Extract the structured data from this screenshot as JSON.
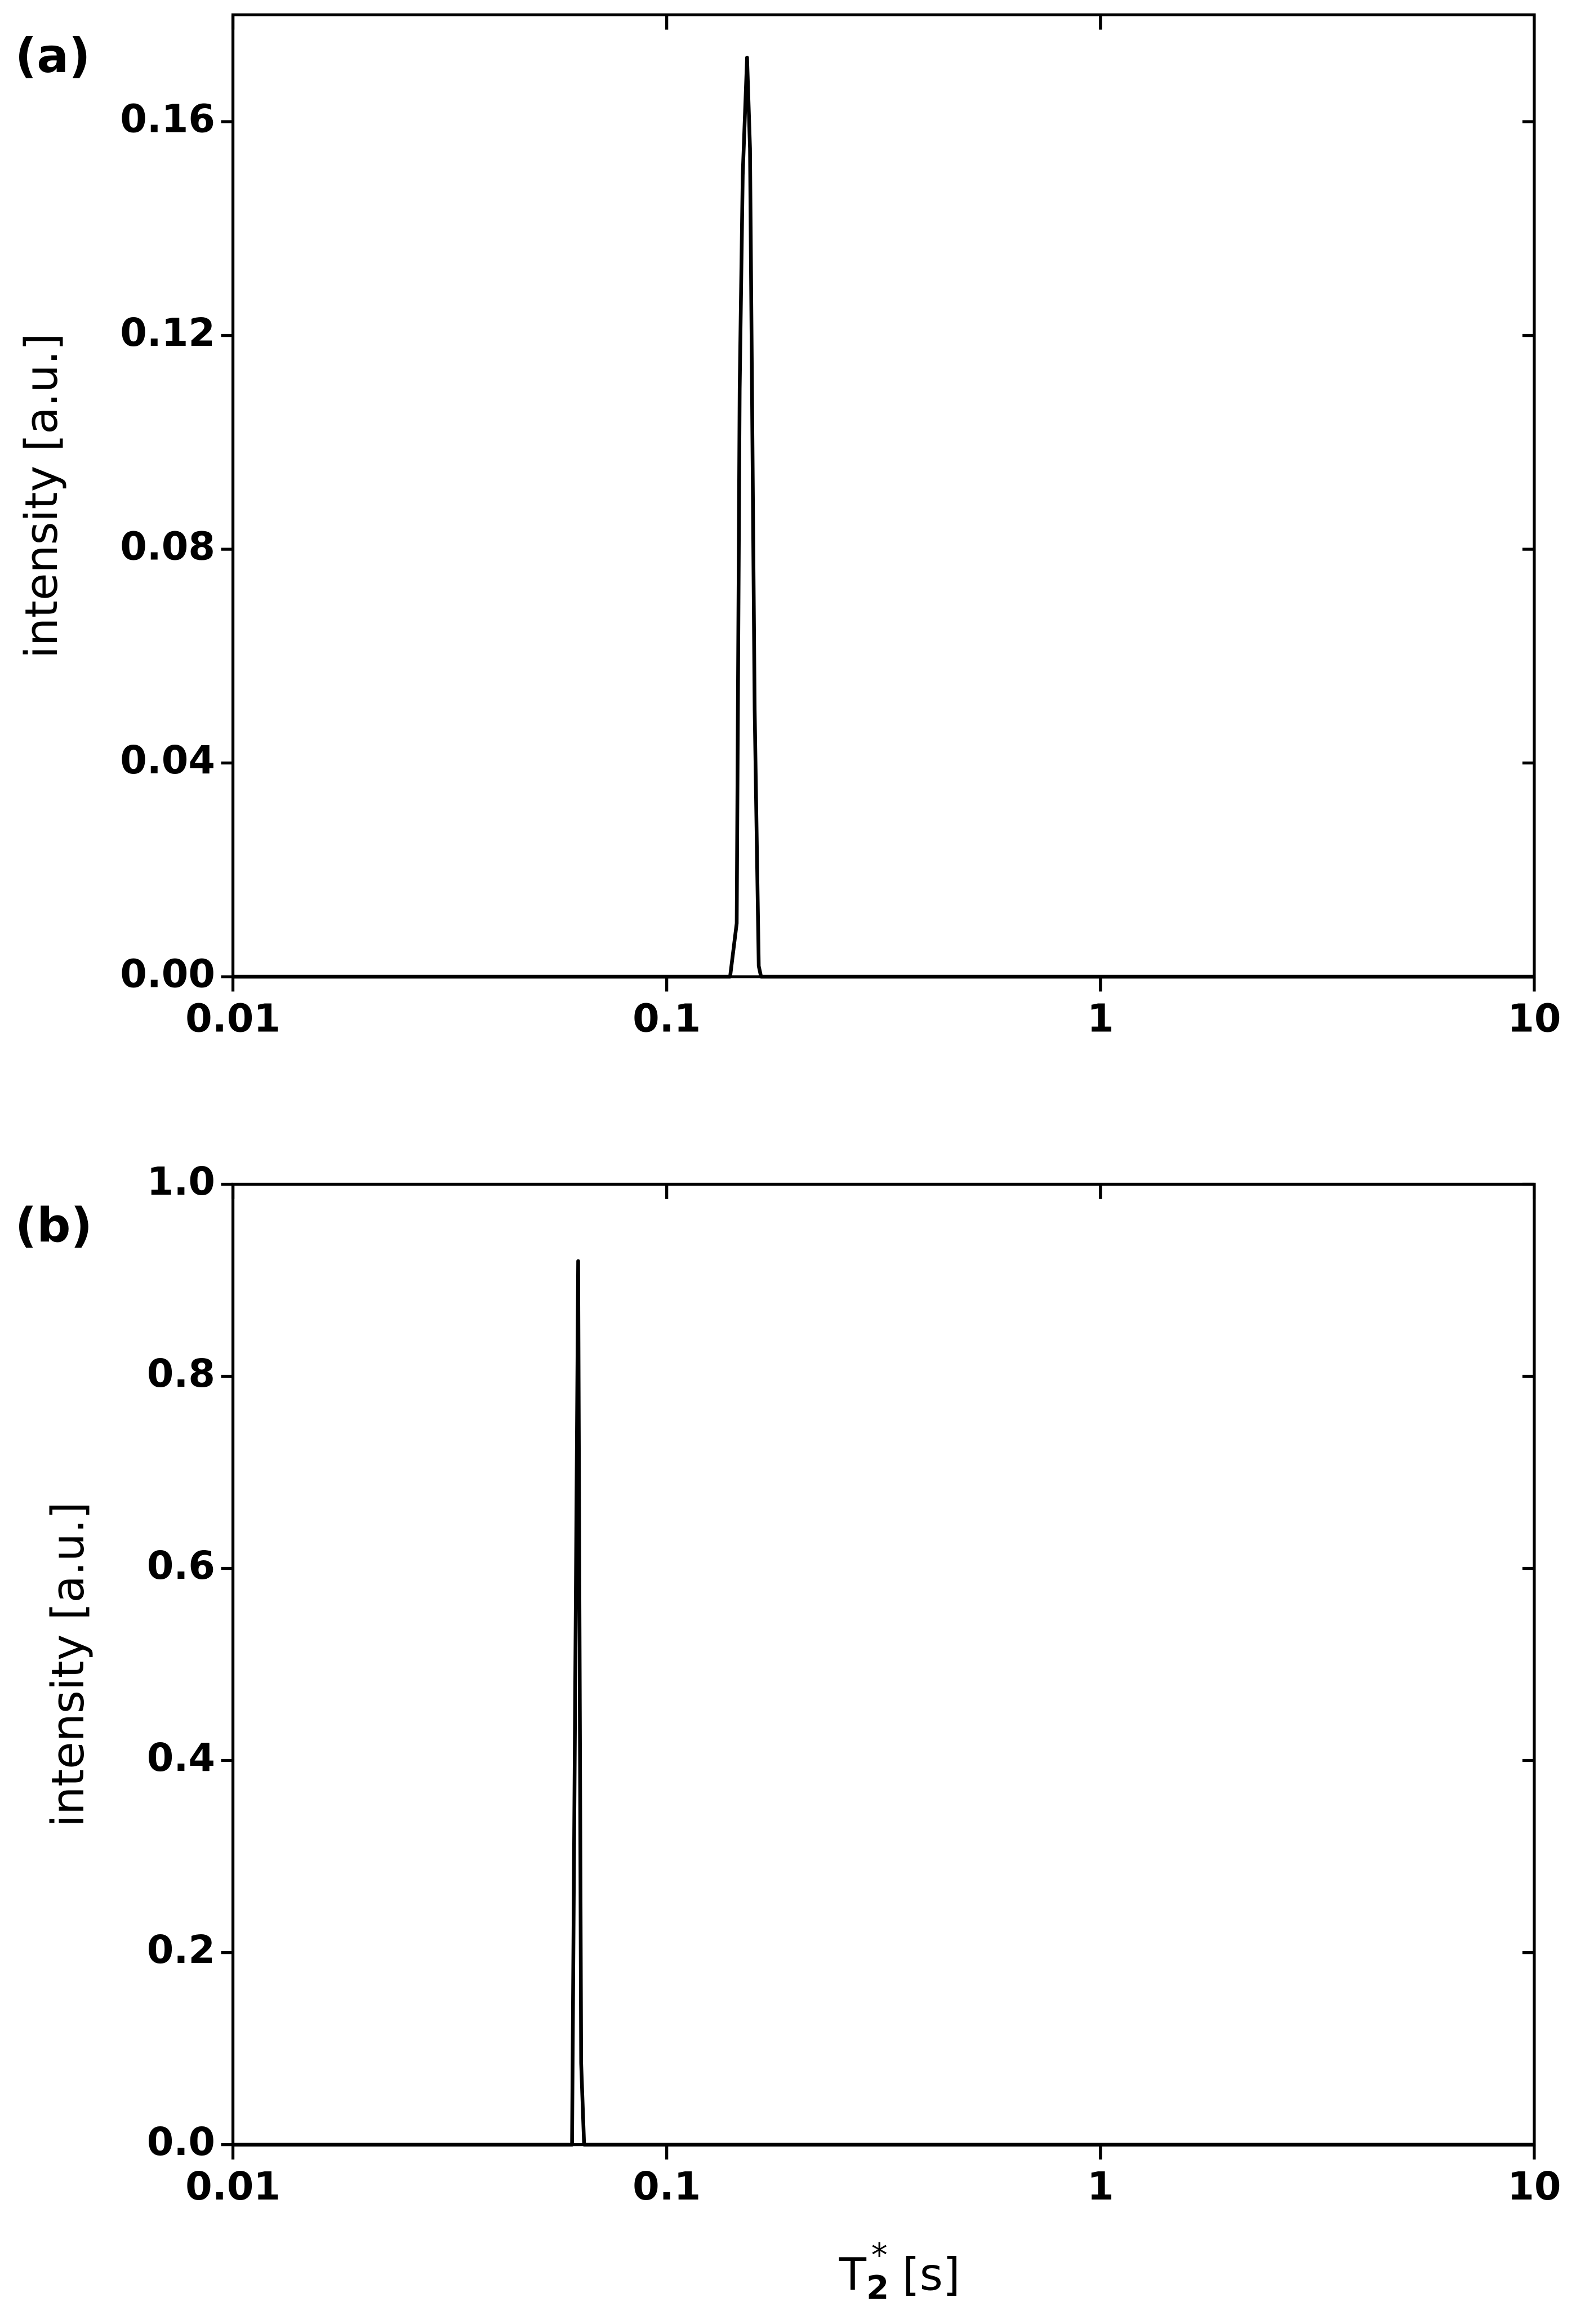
{
  "chart_data": [
    {
      "type": "line",
      "label": "(a)",
      "ylabel": "intensity [a.u.]",
      "xscale": "log",
      "xlim": [
        0.01,
        10
      ],
      "xticks": [
        0.01,
        0.1,
        1,
        10
      ],
      "ylim": [
        0,
        0.18
      ],
      "yticks": [
        {
          "value": 0,
          "label": "0.00"
        },
        {
          "value": 0.04,
          "label": "0.04"
        },
        {
          "value": 0.08,
          "label": "0.08"
        },
        {
          "value": 0.12,
          "label": "0.12"
        },
        {
          "value": 0.16,
          "label": "0.16"
        }
      ],
      "series": [
        {
          "color": "#000000",
          "x": [
            0.01,
            0.14,
            0.145,
            0.1473,
            0.1497,
            0.1532,
            0.1556,
            0.1595,
            0.163,
            0.165,
            10
          ],
          "values": [
            0,
            0,
            0.01,
            0.11,
            0.15,
            0.172,
            0.155,
            0.05,
            0.002,
            0,
            0
          ]
        }
      ]
    },
    {
      "type": "line",
      "label": "(b)",
      "ylabel": "intensity [a.u.]",
      "xscale": "log",
      "xlabel": {
        "symbol": "T",
        "subscript": "2",
        "superscript": "*",
        "unit": "[s]"
      },
      "xlim": [
        0.01,
        10
      ],
      "xticks": [
        0.01,
        0.1,
        1,
        10
      ],
      "ylim": [
        0,
        1
      ],
      "yticks": [
        {
          "value": 0,
          "label": "0.0"
        },
        0.2,
        0.4,
        0.6,
        0.8,
        {
          "value": 1,
          "label": "1.0"
        }
      ],
      "series": [
        {
          "color": "#000000",
          "x": [
            0.01,
            0.06,
            0.0605,
            0.0625,
            0.0635,
            0.0645,
            10
          ],
          "values": [
            0,
            0,
            0,
            0.92,
            0.085,
            0,
            0
          ]
        }
      ]
    }
  ]
}
